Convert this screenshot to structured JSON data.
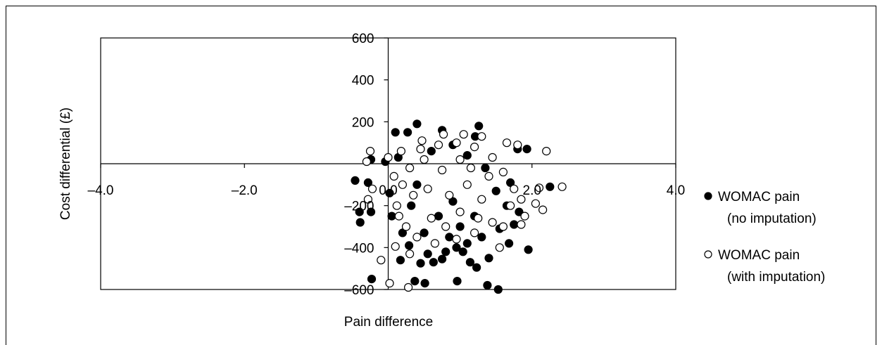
{
  "chart_data": {
    "type": "scatter",
    "title": "",
    "xlabel": "Pain difference",
    "ylabel": "Cost differential (£)",
    "xlim": [
      -4.0,
      4.0
    ],
    "ylim": [
      -600,
      600
    ],
    "x_ticks": [
      -4.0,
      -2.0,
      0.0,
      2.0,
      4.0
    ],
    "x_tick_labels": [
      "–4.0",
      "–2.0",
      "0.0",
      "2.0",
      "4.0"
    ],
    "y_ticks": [
      -600,
      -400,
      -200,
      0,
      200,
      400,
      600
    ],
    "y_tick_labels": [
      "–600",
      "–400",
      "–200",
      "",
      "200",
      "400",
      "600"
    ],
    "grid": false,
    "legend_position": "right",
    "series": [
      {
        "name": "WOMAC pain (no imputation)",
        "marker": "filled-circle",
        "color": "#000000",
        "points": [
          [
            1.53,
            -600
          ],
          [
            0.37,
            -560
          ],
          [
            -0.23,
            -550
          ],
          [
            0.96,
            -560
          ],
          [
            1.38,
            -580
          ],
          [
            0.51,
            -570
          ],
          [
            1.23,
            -495
          ],
          [
            1.14,
            -470
          ],
          [
            0.17,
            -460
          ],
          [
            0.75,
            -455
          ],
          [
            0.55,
            -430
          ],
          [
            1.68,
            -380
          ],
          [
            1.95,
            -410
          ],
          [
            -0.39,
            -280
          ],
          [
            -0.4,
            -230
          ],
          [
            -0.24,
            -230
          ],
          [
            -0.46,
            -80
          ],
          [
            -0.24,
            20
          ],
          [
            -0.28,
            -90
          ],
          [
            0.1,
            150
          ],
          [
            0.27,
            150
          ],
          [
            0.4,
            190
          ],
          [
            0.75,
            160
          ],
          [
            1.26,
            180
          ],
          [
            1.21,
            130
          ],
          [
            1.8,
            70
          ],
          [
            1.93,
            70
          ],
          [
            2.25,
            -110
          ],
          [
            0.95,
            -400
          ],
          [
            0.63,
            -470
          ],
          [
            0.45,
            -475
          ],
          [
            1.04,
            -420
          ],
          [
            1.4,
            -450
          ],
          [
            0.29,
            -390
          ],
          [
            0.2,
            -330
          ],
          [
            0.85,
            -350
          ],
          [
            1.55,
            -310
          ],
          [
            1.75,
            -290
          ],
          [
            1.82,
            -230
          ],
          [
            1.65,
            -200
          ],
          [
            0.05,
            -250
          ],
          [
            0.02,
            -140
          ],
          [
            -0.04,
            10
          ],
          [
            0.14,
            30
          ],
          [
            0.6,
            60
          ],
          [
            0.9,
            90
          ],
          [
            1.1,
            40
          ],
          [
            1.35,
            -20
          ],
          [
            1.5,
            -130
          ],
          [
            1.7,
            -90
          ],
          [
            0.32,
            -200
          ],
          [
            0.7,
            -250
          ],
          [
            1.0,
            -300
          ],
          [
            1.2,
            -250
          ],
          [
            0.5,
            -330
          ],
          [
            0.8,
            -420
          ],
          [
            1.1,
            -380
          ],
          [
            1.3,
            -350
          ],
          [
            0.4,
            -100
          ],
          [
            0.9,
            -180
          ]
        ]
      },
      {
        "name": "WOMAC pain (with imputation)",
        "marker": "open-circle",
        "color": "#000000",
        "points": [
          [
            -0.1,
            -460
          ],
          [
            0.02,
            -570
          ],
          [
            0.28,
            -590
          ],
          [
            -0.25,
            60
          ],
          [
            -0.3,
            10
          ],
          [
            -0.22,
            -120
          ],
          [
            -0.28,
            -170
          ],
          [
            2.2,
            60
          ],
          [
            2.42,
            -110
          ],
          [
            2.1,
            -115
          ],
          [
            2.05,
            -190
          ],
          [
            2.15,
            -220
          ],
          [
            1.55,
            -400
          ],
          [
            0.3,
            -430
          ],
          [
            0.1,
            -395
          ],
          [
            1.85,
            -290
          ],
          [
            1.9,
            -250
          ],
          [
            1.8,
            90
          ],
          [
            1.65,
            100
          ],
          [
            0.18,
            60
          ],
          [
            0.47,
            110
          ],
          [
            0.77,
            140
          ],
          [
            1.05,
            140
          ],
          [
            1.3,
            130
          ],
          [
            0.0,
            30
          ],
          [
            0.08,
            -60
          ],
          [
            0.12,
            -200
          ],
          [
            0.25,
            -300
          ],
          [
            0.4,
            -350
          ],
          [
            0.65,
            -380
          ],
          [
            0.95,
            -360
          ],
          [
            1.2,
            -330
          ],
          [
            1.45,
            -280
          ],
          [
            1.7,
            -200
          ],
          [
            1.75,
            -120
          ],
          [
            1.6,
            -40
          ],
          [
            1.45,
            30
          ],
          [
            1.2,
            80
          ],
          [
            0.95,
            100
          ],
          [
            0.7,
            90
          ],
          [
            0.45,
            70
          ],
          [
            0.3,
            -20
          ],
          [
            0.55,
            -120
          ],
          [
            0.85,
            -150
          ],
          [
            1.1,
            -100
          ],
          [
            1.3,
            -170
          ],
          [
            0.6,
            -260
          ],
          [
            1.0,
            -230
          ],
          [
            0.35,
            -150
          ],
          [
            1.4,
            -60
          ],
          [
            0.75,
            -30
          ],
          [
            1.15,
            -20
          ],
          [
            0.2,
            -100
          ],
          [
            1.6,
            -300
          ],
          [
            0.5,
            20
          ],
          [
            1.0,
            20
          ],
          [
            0.8,
            -300
          ],
          [
            1.25,
            -260
          ],
          [
            0.15,
            -250
          ],
          [
            1.85,
            -170
          ]
        ]
      }
    ]
  }
}
